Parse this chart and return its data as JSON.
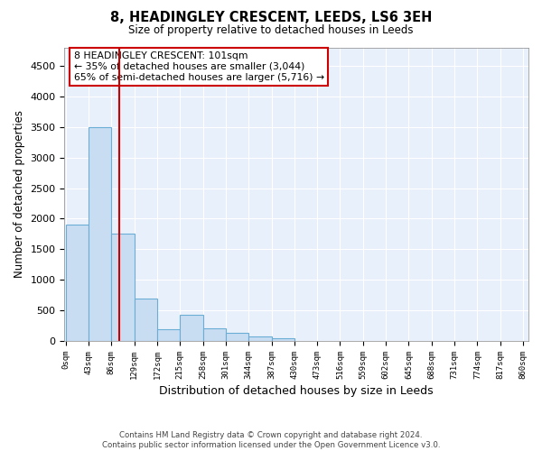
{
  "title1": "8, HEADINGLEY CRESCENT, LEEDS, LS6 3EH",
  "title2": "Size of property relative to detached houses in Leeds",
  "xlabel": "Distribution of detached houses by size in Leeds",
  "ylabel": "Number of detached properties",
  "footer1": "Contains HM Land Registry data © Crown copyright and database right 2024.",
  "footer2": "Contains public sector information licensed under the Open Government Licence v3.0.",
  "bar_color": "#c9ddf2",
  "bar_edge_color": "#6aaed6",
  "annotation_box_color": "#cc0000",
  "vline_color": "#cc0000",
  "property_sqm": 101,
  "annotation_line1": "8 HEADINGLEY CRESCENT: 101sqm",
  "annotation_line2": "← 35% of detached houses are smaller (3,044)",
  "annotation_line3": "65% of semi-detached houses are larger (5,716) →",
  "bin_labels": [
    "0sqm",
    "43sqm",
    "86sqm",
    "129sqm",
    "172sqm",
    "215sqm",
    "258sqm",
    "301sqm",
    "344sqm",
    "387sqm",
    "430sqm",
    "473sqm",
    "516sqm",
    "559sqm",
    "602sqm",
    "645sqm",
    "688sqm",
    "731sqm",
    "774sqm",
    "817sqm",
    "860sqm"
  ],
  "bin_edges": [
    0,
    43,
    86,
    129,
    172,
    215,
    258,
    301,
    344,
    387,
    430,
    473,
    516,
    559,
    602,
    645,
    688,
    731,
    774,
    817,
    860
  ],
  "bar_heights": [
    1900,
    3500,
    1750,
    700,
    200,
    430,
    210,
    135,
    80,
    40,
    0,
    0,
    0,
    0,
    0,
    0,
    0,
    0,
    0,
    0
  ],
  "ylim": [
    0,
    4800
  ],
  "yticks": [
    0,
    500,
    1000,
    1500,
    2000,
    2500,
    3000,
    3500,
    4000,
    4500
  ],
  "plot_bg_color": "#e8f0fb"
}
